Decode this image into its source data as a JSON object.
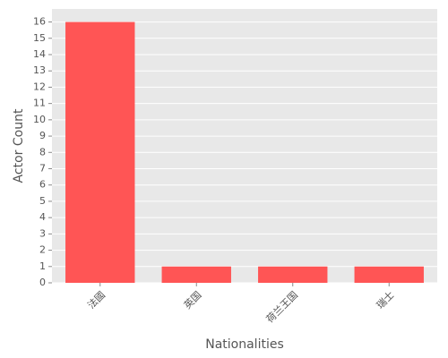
{
  "chart_data": {
    "type": "bar",
    "x_label": "Nationalities",
    "y_label": "Actor Count",
    "categories": [
      "法國",
      "英国",
      "荷兰王国",
      "瑞士"
    ],
    "values": [
      16,
      1,
      1,
      1
    ],
    "color": "#ff5555",
    "ylim": [
      0,
      16.8
    ],
    "yticks": [
      0,
      1,
      2,
      3,
      4,
      5,
      6,
      7,
      8,
      9,
      10,
      11,
      12,
      13,
      14,
      15,
      16
    ],
    "grid": true
  }
}
